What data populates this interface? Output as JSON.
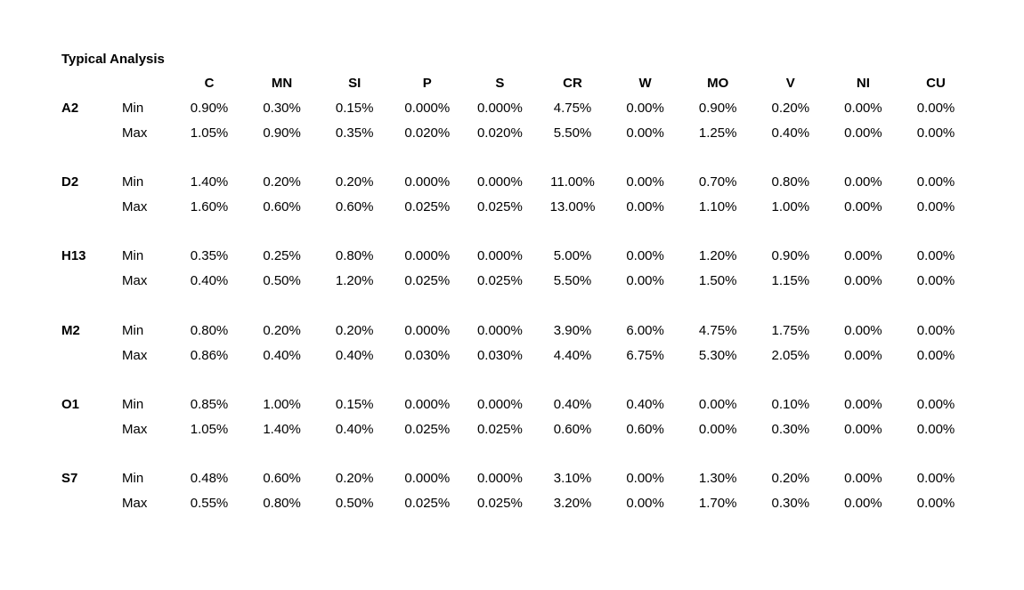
{
  "title": "Typical Analysis",
  "columns": [
    "C",
    "MN",
    "SI",
    "P",
    "S",
    "CR",
    "W",
    "MO",
    "V",
    "NI",
    "CU"
  ],
  "groups": [
    {
      "name": "A2",
      "rows": [
        {
          "label": "Min",
          "values": [
            "0.90%",
            "0.30%",
            "0.15%",
            "0.000%",
            "0.000%",
            "4.75%",
            "0.00%",
            "0.90%",
            "0.20%",
            "0.00%",
            "0.00%"
          ]
        },
        {
          "label": "Max",
          "values": [
            "1.05%",
            "0.90%",
            "0.35%",
            "0.020%",
            "0.020%",
            "5.50%",
            "0.00%",
            "1.25%",
            "0.40%",
            "0.00%",
            "0.00%"
          ]
        }
      ]
    },
    {
      "name": "D2",
      "rows": [
        {
          "label": "Min",
          "values": [
            "1.40%",
            "0.20%",
            "0.20%",
            "0.000%",
            "0.000%",
            "11.00%",
            "0.00%",
            "0.70%",
            "0.80%",
            "0.00%",
            "0.00%"
          ]
        },
        {
          "label": "Max",
          "values": [
            "1.60%",
            "0.60%",
            "0.60%",
            "0.025%",
            "0.025%",
            "13.00%",
            "0.00%",
            "1.10%",
            "1.00%",
            "0.00%",
            "0.00%"
          ]
        }
      ]
    },
    {
      "name": "H13",
      "rows": [
        {
          "label": "Min",
          "values": [
            "0.35%",
            "0.25%",
            "0.80%",
            "0.000%",
            "0.000%",
            "5.00%",
            "0.00%",
            "1.20%",
            "0.90%",
            "0.00%",
            "0.00%"
          ]
        },
        {
          "label": "Max",
          "values": [
            "0.40%",
            "0.50%",
            "1.20%",
            "0.025%",
            "0.025%",
            "5.50%",
            "0.00%",
            "1.50%",
            "1.15%",
            "0.00%",
            "0.00%"
          ]
        }
      ]
    },
    {
      "name": "M2",
      "rows": [
        {
          "label": "Min",
          "values": [
            "0.80%",
            "0.20%",
            "0.20%",
            "0.000%",
            "0.000%",
            "3.90%",
            "6.00%",
            "4.75%",
            "1.75%",
            "0.00%",
            "0.00%"
          ]
        },
        {
          "label": "Max",
          "values": [
            "0.86%",
            "0.40%",
            "0.40%",
            "0.030%",
            "0.030%",
            "4.40%",
            "6.75%",
            "5.30%",
            "2.05%",
            "0.00%",
            "0.00%"
          ]
        }
      ]
    },
    {
      "name": "O1",
      "rows": [
        {
          "label": "Min",
          "values": [
            "0.85%",
            "1.00%",
            "0.15%",
            "0.000%",
            "0.000%",
            "0.40%",
            "0.40%",
            "0.00%",
            "0.10%",
            "0.00%",
            "0.00%"
          ]
        },
        {
          "label": "Max",
          "values": [
            "1.05%",
            "1.40%",
            "0.40%",
            "0.025%",
            "0.025%",
            "0.60%",
            "0.60%",
            "0.00%",
            "0.30%",
            "0.00%",
            "0.00%"
          ]
        }
      ]
    },
    {
      "name": "S7",
      "rows": [
        {
          "label": "Min",
          "values": [
            "0.48%",
            "0.60%",
            "0.20%",
            "0.000%",
            "0.000%",
            "3.10%",
            "0.00%",
            "1.30%",
            "0.20%",
            "0.00%",
            "0.00%"
          ]
        },
        {
          "label": "Max",
          "values": [
            "0.55%",
            "0.80%",
            "0.50%",
            "0.025%",
            "0.025%",
            "3.20%",
            "0.00%",
            "1.70%",
            "0.30%",
            "0.00%",
            "0.00%"
          ]
        }
      ]
    }
  ]
}
